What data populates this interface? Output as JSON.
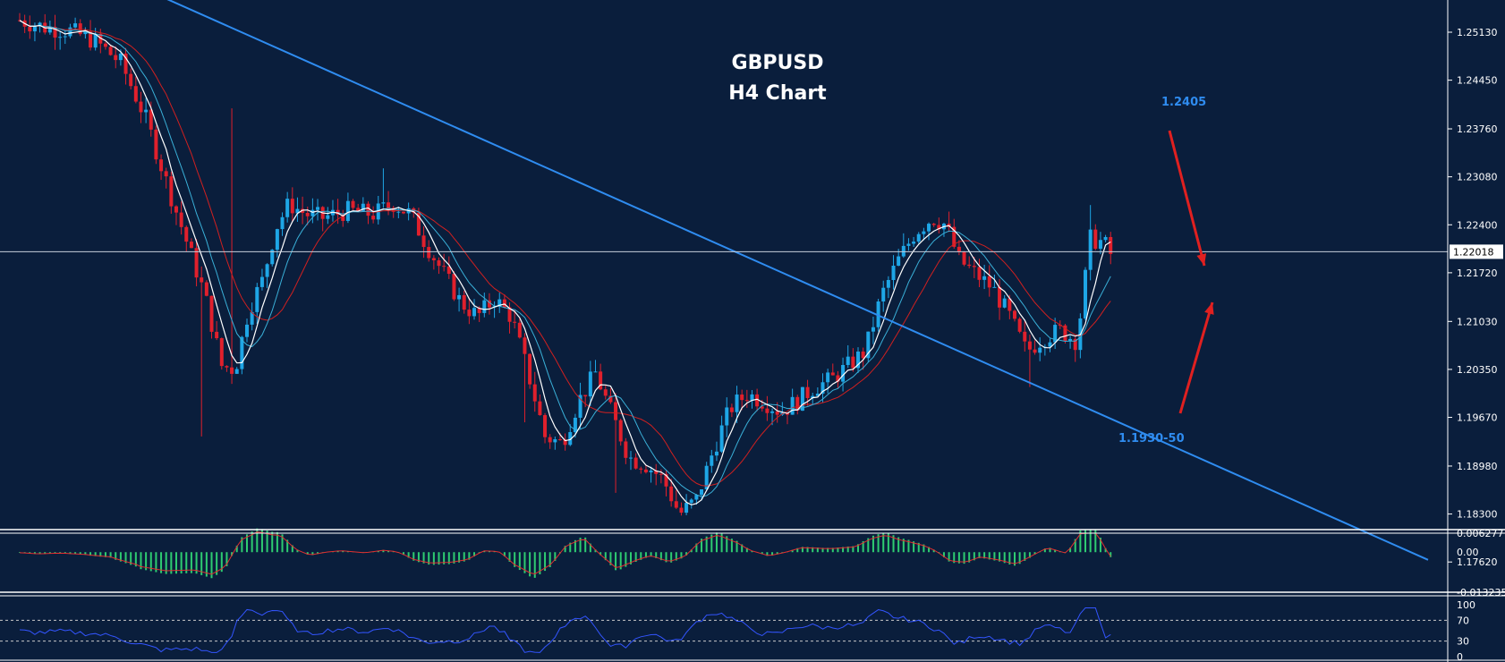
{
  "chart_data": [
    {
      "type": "candlestick",
      "panel": "main",
      "title": "GBPUSD",
      "subtitle": "H4 Chart",
      "y_ticks": [
        "1.25130",
        "1.24450",
        "1.23760",
        "1.23080",
        "1.22400",
        "1.21720",
        "1.21030",
        "1.20350",
        "1.19670",
        "1.18980",
        "1.18300",
        "1.17620"
      ],
      "ylim": [
        1.1725,
        1.2565
      ],
      "current_price": "1.22018",
      "current_price_value": 1.22018,
      "annotations": [
        {
          "text": "1.2405",
          "direction": "down"
        },
        {
          "text": "1.1930-50",
          "direction": "up"
        }
      ],
      "trendline": {
        "color": "#2f8cf0",
        "start_value": 1.2575,
        "end_value": 1.1765
      },
      "path_close": [
        [
          0,
          1.253
        ],
        [
          15,
          1.252
        ],
        [
          30,
          1.2515
        ],
        [
          45,
          1.25
        ],
        [
          60,
          1.247
        ],
        [
          75,
          1.239
        ],
        [
          90,
          1.228
        ],
        [
          100,
          1.221
        ],
        [
          110,
          1.214
        ],
        [
          120,
          1.204
        ],
        [
          128,
          1.2035
        ],
        [
          136,
          1.212
        ],
        [
          144,
          1.216
        ],
        [
          152,
          1.2235
        ],
        [
          160,
          1.227
        ],
        [
          170,
          1.2255
        ],
        [
          180,
          1.225
        ],
        [
          195,
          1.226
        ],
        [
          210,
          1.2255
        ],
        [
          222,
          1.227
        ],
        [
          232,
          1.2255
        ],
        [
          242,
          1.221
        ],
        [
          252,
          1.217
        ],
        [
          262,
          1.213
        ],
        [
          272,
          1.211
        ],
        [
          282,
          1.2135
        ],
        [
          292,
          1.211
        ],
        [
          302,
          1.203
        ],
        [
          312,
          1.194
        ],
        [
          322,
          1.193
        ],
        [
          332,
          1.199
        ],
        [
          342,
          1.203
        ],
        [
          352,
          1.197
        ],
        [
          362,
          1.191
        ],
        [
          372,
          1.19
        ],
        [
          382,
          1.188
        ],
        [
          392,
          1.183
        ],
        [
          402,
          1.185
        ],
        [
          412,
          1.192
        ],
        [
          422,
          1.198
        ],
        [
          432,
          1.2
        ],
        [
          442,
          1.199
        ],
        [
          452,
          1.1975
        ],
        [
          462,
          1.199
        ],
        [
          472,
          1.201
        ],
        [
          482,
          1.202
        ],
        [
          492,
          1.204
        ],
        [
          502,
          1.206
        ],
        [
          512,
          1.214
        ],
        [
          522,
          1.219
        ],
        [
          532,
          1.223
        ],
        [
          542,
          1.225
        ],
        [
          550,
          1.224
        ],
        [
          558,
          1.219
        ],
        [
          568,
          1.217
        ],
        [
          578,
          1.215
        ],
        [
          588,
          1.211
        ],
        [
          598,
          1.206
        ],
        [
          608,
          1.208
        ],
        [
          618,
          1.209
        ],
        [
          628,
          1.2075
        ],
        [
          636,
          1.222
        ],
        [
          644,
          1.2215
        ],
        [
          650,
          1.219
        ]
      ],
      "indicators": [
        {
          "name": "ma-white",
          "color": "#ffffff"
        },
        {
          "name": "ma-cyan",
          "color": "#3ab0d8"
        },
        {
          "name": "ma-red",
          "color": "#d02020"
        }
      ],
      "colors": {
        "background": "#0a1e3c",
        "bull": "#1ea6e6",
        "bear": "#e0202c"
      }
    },
    {
      "type": "bar",
      "panel": "macd",
      "y_ticks": [
        "0.006277",
        "0.00",
        "-0.013235"
      ],
      "ylim": [
        -0.013235,
        0.006277
      ],
      "colors": {
        "histogram": "#2ecc71",
        "signal": "#e03030"
      }
    },
    {
      "type": "line",
      "panel": "rsi",
      "y_ticks": [
        "100",
        "70",
        "30",
        "0"
      ],
      "ylim": [
        0,
        100
      ],
      "colors": {
        "line": "#3355ff",
        "levels": "#c8c8c8"
      }
    }
  ]
}
